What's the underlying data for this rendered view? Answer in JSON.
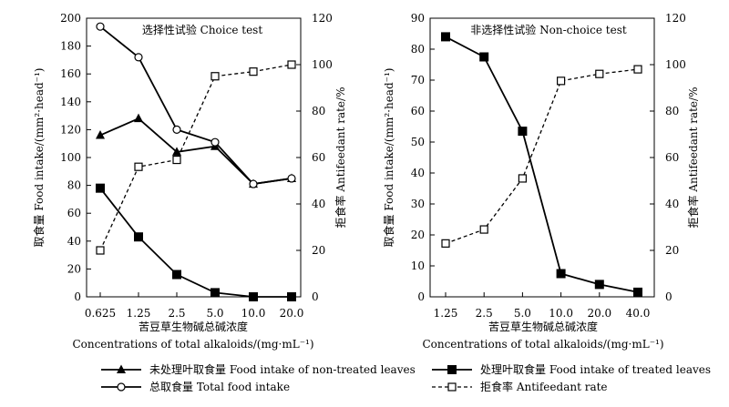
{
  "chart_data": [
    {
      "type": "line",
      "title": "选择性试验 Choice test",
      "categories": [
        "0.625",
        "1.25",
        "2.5",
        "5.0",
        "10.0",
        "20.0"
      ],
      "xlabel_cn": "苦豆草生物碱总碱浓度",
      "xlabel_en": "Concentrations of total alkaloids/(mg·mL⁻¹)",
      "ylabel_left": "取食量 Food intake/(mm²·head⁻¹)",
      "ylabel_right": "拒食率 Antifeedant rate/%",
      "ylim_left": [
        0,
        200
      ],
      "yticks_left": [
        0,
        20,
        40,
        60,
        80,
        100,
        120,
        140,
        160,
        180,
        200
      ],
      "ylim_right": [
        0,
        120
      ],
      "yticks_right": [
        0,
        20,
        40,
        60,
        80,
        100,
        120
      ],
      "series": [
        {
          "name": "未处理叶取食量 Food intake of non-treated leaves",
          "axis": "left",
          "marker": "triangle",
          "style": "solid",
          "values": [
            116,
            128,
            104,
            108,
            81,
            85
          ]
        },
        {
          "name": "处理叶取食量 Food intake of treated leaves",
          "axis": "left",
          "marker": "square-filled",
          "style": "solid",
          "values": [
            78,
            43,
            16,
            3,
            0,
            0
          ]
        },
        {
          "name": "总取食量 Total food intake",
          "axis": "left",
          "marker": "circle-open",
          "style": "solid",
          "values": [
            194,
            172,
            120,
            111,
            81,
            85
          ]
        },
        {
          "name": "拒食率 Antifeedant rate",
          "axis": "right",
          "marker": "square-open",
          "style": "dashed",
          "values": [
            20,
            56,
            59,
            95,
            97,
            100
          ]
        }
      ]
    },
    {
      "type": "line",
      "title": "非选择性试验 Non-choice test",
      "categories": [
        "1.25",
        "2.5",
        "5.0",
        "10.0",
        "20.0",
        "40.0"
      ],
      "xlabel_cn": "苦豆草生物碱总碱浓度",
      "xlabel_en": "Concentrations of total alkaloids/(mg·mL⁻¹)",
      "ylabel_left": "取食量 Food intake/(mm²·head⁻¹)",
      "ylabel_right": "拒食率 Antifeedant rate/%",
      "ylim_left": [
        0,
        90
      ],
      "yticks_left": [
        0,
        10,
        20,
        30,
        40,
        50,
        60,
        70,
        80,
        90
      ],
      "ylim_right": [
        0,
        120
      ],
      "yticks_right": [
        0,
        20,
        40,
        60,
        80,
        100,
        120
      ],
      "series": [
        {
          "name": "处理叶取食量 Food intake of treated leaves",
          "axis": "left",
          "marker": "square-filled",
          "style": "solid",
          "values": [
            84,
            77.5,
            53.5,
            7.5,
            4,
            1.5
          ]
        },
        {
          "name": "拒食率 Antifeedant rate",
          "axis": "right",
          "marker": "square-open",
          "style": "dashed",
          "values": [
            23,
            29,
            51,
            93,
            96,
            98
          ]
        }
      ]
    }
  ],
  "legend": [
    {
      "label": "未处理叶取食量 Food intake of non-treated leaves",
      "marker": "triangle",
      "style": "solid"
    },
    {
      "label": "处理叶取食量 Food intake of  treated leaves",
      "marker": "square-filled",
      "style": "solid"
    },
    {
      "label": "总取食量 Total food intake",
      "marker": "circle-open",
      "style": "solid"
    },
    {
      "label": "拒食率 Antifeedant rate",
      "marker": "square-open",
      "style": "dashed"
    }
  ]
}
